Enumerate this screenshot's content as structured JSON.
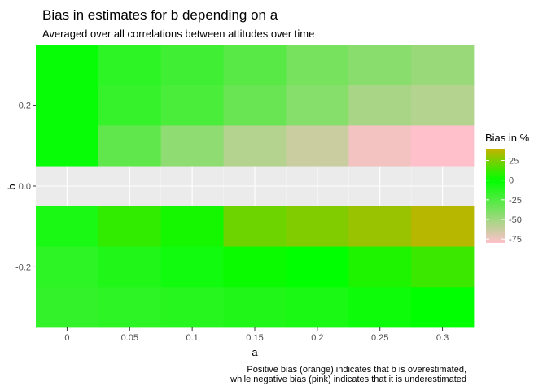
{
  "chart_data": {
    "type": "heatmap",
    "title": "Bias in estimates for b depending on a",
    "subtitle": "Averaged over all correlations between attitudes over time",
    "xlabel": "a",
    "ylabel": "b",
    "x_ticks": [
      "0",
      "0.05",
      "0.1",
      "0.15",
      "0.2",
      "0.25",
      "0.3"
    ],
    "y_ticks": [
      "0.2",
      "0.0",
      "-0.2"
    ],
    "x_values": [
      0,
      0.05,
      0.1,
      0.15,
      0.2,
      0.25,
      0.3
    ],
    "y_values": [
      0.3,
      0.2,
      0.1,
      -0.1,
      -0.2,
      -0.3
    ],
    "xlim": [
      -0.025,
      0.325
    ],
    "ylim": [
      -0.35,
      0.35
    ],
    "legend": {
      "title": "Bias in %",
      "position": "right",
      "ticks": [
        25,
        0,
        -25,
        -50,
        -75
      ],
      "tick_labels": [
        "25",
        "0",
        "-25",
        "-50",
        "-75"
      ],
      "range": [
        -80,
        40
      ],
      "colors": {
        "high": "#c6b100",
        "mid": "#00ff00",
        "low": "#ffc0cb"
      }
    },
    "values": [
      [
        -2,
        -14,
        -20,
        -28,
        -37,
        -43,
        -48
      ],
      [
        -2,
        -17,
        -23,
        -33,
        -42,
        -53,
        -56
      ],
      [
        -2,
        -30,
        -45,
        -56,
        -63,
        -76,
        -80
      ],
      [
        -8,
        10,
        4,
        22,
        26,
        31,
        37
      ],
      [
        -14,
        -10,
        -5,
        2,
        0,
        6,
        12
      ],
      [
        -16,
        -14,
        -12,
        -10,
        -8,
        -4,
        0
      ]
    ],
    "caption_lines": [
      "Positive bias (orange) indicates that b is overestimated,",
      "while negative bias (pink) indicates that it is underestimated"
    ],
    "grid": true
  }
}
